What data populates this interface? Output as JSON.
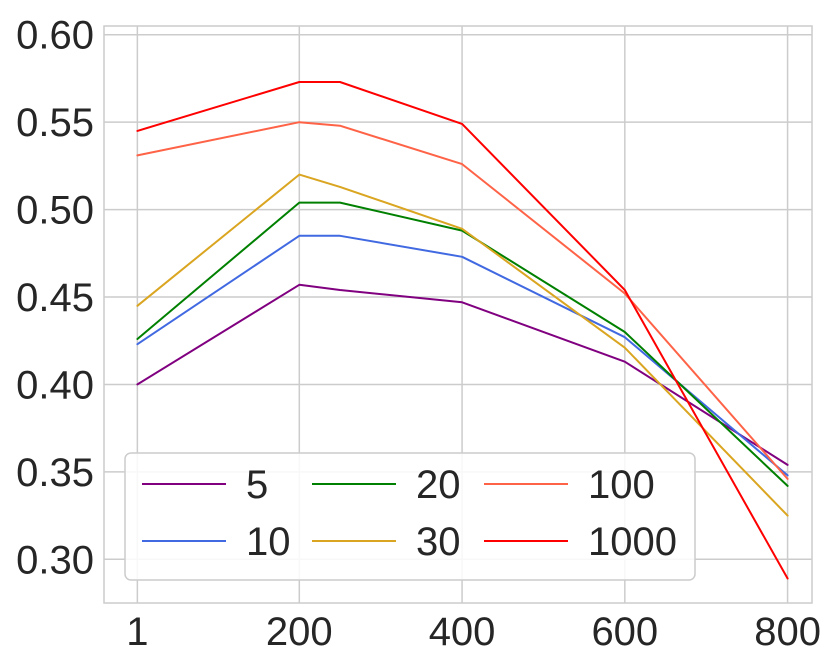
{
  "chart_data": {
    "type": "line",
    "x": [
      "1",
      "200",
      "250",
      "400",
      "600",
      "800"
    ],
    "x_numeric": [
      1,
      200,
      250,
      400,
      600,
      800
    ],
    "xticks": [
      "1",
      "200",
      "400",
      "600",
      "800"
    ],
    "xtick_values": [
      1,
      200,
      400,
      600,
      800
    ],
    "yticks": [
      "0.60",
      "0.55",
      "0.50",
      "0.45",
      "0.40",
      "0.35",
      "0.30"
    ],
    "ytick_values": [
      0.6,
      0.55,
      0.5,
      0.45,
      0.4,
      0.35,
      0.3
    ],
    "xlim": [
      -40,
      830
    ],
    "ylim": [
      0.275,
      0.605
    ],
    "grid": true,
    "legend_placement": "lower-left",
    "series": [
      {
        "name": "5",
        "color": "#800080",
        "values": [
          0.4,
          0.457,
          0.454,
          0.447,
          0.413,
          0.354
        ]
      },
      {
        "name": "10",
        "color": "#4169e1",
        "values": [
          0.423,
          0.485,
          0.485,
          0.473,
          0.427,
          0.348
        ]
      },
      {
        "name": "20",
        "color": "#008000",
        "values": [
          0.426,
          0.504,
          0.504,
          0.488,
          0.43,
          0.342
        ]
      },
      {
        "name": "30",
        "color": "#daa520",
        "values": [
          0.445,
          0.52,
          0.513,
          0.489,
          0.421,
          0.325
        ]
      },
      {
        "name": "100",
        "color": "#ff6347",
        "values": [
          0.531,
          0.55,
          0.548,
          0.526,
          0.452,
          0.346
        ]
      },
      {
        "name": "1000",
        "color": "#ff0000",
        "values": [
          0.545,
          0.573,
          0.573,
          0.549,
          0.454,
          0.289
        ]
      }
    ]
  },
  "legend": {
    "items": [
      {
        "label": "5",
        "color": "#800080"
      },
      {
        "label": "20",
        "color": "#008000"
      },
      {
        "label": "100",
        "color": "#ff6347"
      },
      {
        "label": "10",
        "color": "#4169e1"
      },
      {
        "label": "30",
        "color": "#daa520"
      },
      {
        "label": "1000",
        "color": "#ff0000"
      }
    ]
  }
}
